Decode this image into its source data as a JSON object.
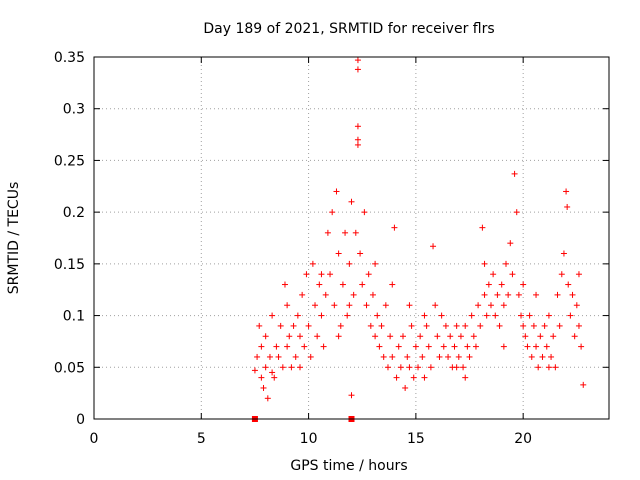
{
  "chart_data": {
    "type": "scatter",
    "title": "Day 189 of 2021, SRMTID for receiver flrs",
    "xlabel": "GPS time / hours",
    "ylabel": "SRMTID / TECUs",
    "xlim": [
      0,
      24
    ],
    "ylim": [
      0,
      0.35
    ],
    "x_ticks": [
      0,
      5,
      10,
      15,
      20
    ],
    "y_ticks": [
      0,
      0.05,
      0.1,
      0.15,
      0.2,
      0.25,
      0.3,
      0.35
    ],
    "x_tick_labels": [
      "0",
      "5",
      "10",
      "15",
      "20"
    ],
    "y_tick_labels": [
      "0",
      "0.05",
      "0.1",
      "0.15",
      "0.2",
      "0.25",
      "0.3",
      "0.35"
    ],
    "grid": true,
    "marker": "+",
    "color": "#ff0000",
    "series": [
      {
        "name": "SRMTID",
        "points": [
          [
            7.5,
            0.047
          ],
          [
            7.6,
            0.06
          ],
          [
            7.7,
            0.09
          ],
          [
            7.8,
            0.04
          ],
          [
            7.9,
            0.03
          ],
          [
            8.0,
            0.05
          ],
          [
            8.0,
            0.08
          ],
          [
            8.1,
            0.02
          ],
          [
            8.2,
            0.06
          ],
          [
            8.3,
            0.1
          ],
          [
            8.4,
            0.04
          ],
          [
            8.5,
            0.07
          ],
          [
            8.6,
            0.06
          ],
          [
            8.7,
            0.09
          ],
          [
            8.8,
            0.05
          ],
          [
            8.9,
            0.13
          ],
          [
            9.0,
            0.07
          ],
          [
            9.1,
            0.08
          ],
          [
            9.2,
            0.05
          ],
          [
            9.3,
            0.09
          ],
          [
            9.4,
            0.06
          ],
          [
            9.5,
            0.1
          ],
          [
            9.6,
            0.08
          ],
          [
            9.7,
            0.12
          ],
          [
            9.8,
            0.07
          ],
          [
            9.9,
            0.14
          ],
          [
            10.0,
            0.09
          ],
          [
            10.1,
            0.06
          ],
          [
            10.2,
            0.15
          ],
          [
            10.3,
            0.11
          ],
          [
            10.4,
            0.08
          ],
          [
            10.5,
            0.13
          ],
          [
            10.6,
            0.1
          ],
          [
            10.7,
            0.07
          ],
          [
            10.8,
            0.12
          ],
          [
            10.9,
            0.18
          ],
          [
            11.0,
            0.14
          ],
          [
            11.1,
            0.2
          ],
          [
            11.2,
            0.11
          ],
          [
            11.3,
            0.22
          ],
          [
            11.4,
            0.16
          ],
          [
            11.5,
            0.09
          ],
          [
            11.6,
            0.13
          ],
          [
            11.7,
            0.18
          ],
          [
            11.8,
            0.1
          ],
          [
            11.9,
            0.15
          ],
          [
            12.0,
            0.21
          ],
          [
            12.1,
            0.12
          ],
          [
            12.2,
            0.18
          ],
          [
            12.3,
            0.347
          ],
          [
            12.3,
            0.338
          ],
          [
            12.3,
            0.283
          ],
          [
            12.3,
            0.27
          ],
          [
            12.3,
            0.265
          ],
          [
            12.4,
            0.16
          ],
          [
            12.5,
            0.13
          ],
          [
            12.6,
            0.2
          ],
          [
            12.7,
            0.11
          ],
          [
            12.8,
            0.14
          ],
          [
            12.9,
            0.09
          ],
          [
            13.0,
            0.12
          ],
          [
            13.1,
            0.08
          ],
          [
            13.2,
            0.1
          ],
          [
            13.3,
            0.07
          ],
          [
            13.4,
            0.09
          ],
          [
            13.5,
            0.06
          ],
          [
            13.6,
            0.11
          ],
          [
            13.7,
            0.05
          ],
          [
            13.8,
            0.08
          ],
          [
            13.9,
            0.06
          ],
          [
            14.0,
            0.185
          ],
          [
            14.1,
            0.04
          ],
          [
            14.2,
            0.07
          ],
          [
            14.3,
            0.05
          ],
          [
            14.4,
            0.08
          ],
          [
            14.5,
            0.03
          ],
          [
            14.6,
            0.06
          ],
          [
            14.7,
            0.05
          ],
          [
            14.8,
            0.09
          ],
          [
            14.9,
            0.04
          ],
          [
            15.0,
            0.07
          ],
          [
            15.1,
            0.05
          ],
          [
            15.2,
            0.08
          ],
          [
            15.3,
            0.06
          ],
          [
            15.4,
            0.04
          ],
          [
            15.5,
            0.09
          ],
          [
            15.6,
            0.07
          ],
          [
            15.7,
            0.05
          ],
          [
            15.8,
            0.167
          ],
          [
            15.9,
            0.11
          ],
          [
            16.0,
            0.08
          ],
          [
            16.1,
            0.06
          ],
          [
            16.2,
            0.1
          ],
          [
            16.3,
            0.07
          ],
          [
            16.4,
            0.09
          ],
          [
            16.5,
            0.06
          ],
          [
            16.6,
            0.08
          ],
          [
            16.7,
            0.05
          ],
          [
            16.8,
            0.07
          ],
          [
            16.9,
            0.09
          ],
          [
            17.0,
            0.06
          ],
          [
            17.1,
            0.08
          ],
          [
            17.2,
            0.05
          ],
          [
            17.3,
            0.09
          ],
          [
            17.4,
            0.07
          ],
          [
            17.5,
            0.06
          ],
          [
            17.6,
            0.1
          ],
          [
            17.7,
            0.08
          ],
          [
            17.8,
            0.07
          ],
          [
            17.9,
            0.11
          ],
          [
            18.0,
            0.09
          ],
          [
            18.1,
            0.185
          ],
          [
            18.2,
            0.12
          ],
          [
            18.3,
            0.1
          ],
          [
            18.4,
            0.13
          ],
          [
            18.5,
            0.11
          ],
          [
            18.6,
            0.14
          ],
          [
            18.7,
            0.1
          ],
          [
            18.8,
            0.12
          ],
          [
            18.9,
            0.09
          ],
          [
            19.0,
            0.13
          ],
          [
            19.1,
            0.11
          ],
          [
            19.2,
            0.15
          ],
          [
            19.3,
            0.12
          ],
          [
            19.4,
            0.17
          ],
          [
            19.5,
            0.14
          ],
          [
            19.6,
            0.237
          ],
          [
            19.7,
            0.2
          ],
          [
            19.8,
            0.12
          ],
          [
            19.9,
            0.1
          ],
          [
            20.0,
            0.09
          ],
          [
            20.1,
            0.08
          ],
          [
            20.2,
            0.07
          ],
          [
            20.3,
            0.1
          ],
          [
            20.4,
            0.06
          ],
          [
            20.5,
            0.09
          ],
          [
            20.6,
            0.07
          ],
          [
            20.7,
            0.05
          ],
          [
            20.8,
            0.08
          ],
          [
            20.9,
            0.06
          ],
          [
            21.0,
            0.09
          ],
          [
            21.1,
            0.07
          ],
          [
            21.2,
            0.1
          ],
          [
            21.3,
            0.06
          ],
          [
            21.4,
            0.08
          ],
          [
            21.5,
            0.05
          ],
          [
            21.6,
            0.12
          ],
          [
            21.7,
            0.09
          ],
          [
            21.8,
            0.14
          ],
          [
            21.9,
            0.16
          ],
          [
            22.0,
            0.22
          ],
          [
            22.05,
            0.205
          ],
          [
            22.1,
            0.13
          ],
          [
            22.2,
            0.1
          ],
          [
            22.3,
            0.12
          ],
          [
            22.4,
            0.08
          ],
          [
            22.5,
            0.11
          ],
          [
            22.6,
            0.09
          ],
          [
            22.7,
            0.07
          ],
          [
            22.8,
            0.033
          ],
          [
            12.0,
            0.023
          ],
          [
            8.3,
            0.045
          ],
          [
            9.0,
            0.11
          ],
          [
            10.6,
            0.14
          ],
          [
            11.9,
            0.11
          ],
          [
            13.9,
            0.13
          ],
          [
            15.4,
            0.1
          ],
          [
            16.9,
            0.05
          ],
          [
            18.2,
            0.15
          ],
          [
            20.6,
            0.12
          ],
          [
            21.2,
            0.05
          ],
          [
            22.6,
            0.14
          ],
          [
            7.8,
            0.07
          ],
          [
            9.6,
            0.05
          ],
          [
            11.4,
            0.08
          ],
          [
            13.1,
            0.15
          ],
          [
            14.7,
            0.11
          ],
          [
            17.3,
            0.04
          ],
          [
            19.1,
            0.07
          ],
          [
            20.0,
            0.13
          ]
        ]
      }
    ],
    "markers_on_axis": [
      {
        "x": 7.5,
        "y": 0
      },
      {
        "x": 12.0,
        "y": 0
      }
    ]
  }
}
